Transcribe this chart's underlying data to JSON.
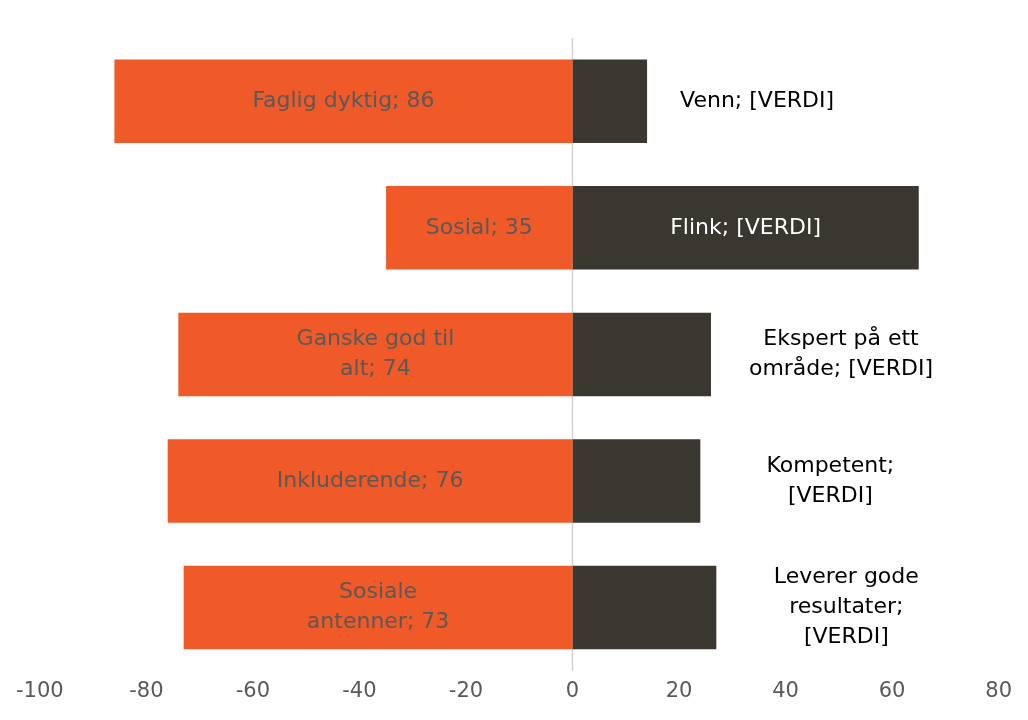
{
  "chart_data": {
    "type": "bar",
    "orientation": "horizontal",
    "categories": [
      null,
      null,
      null,
      null,
      null
    ],
    "series": [
      {
        "color": "#f05a28",
        "base": [
          -86,
          -35,
          -74,
          -76,
          -73
        ],
        "values": [
          86,
          35,
          74,
          76,
          73
        ],
        "value_labels": [
          "Faglig dyktig; 86",
          "Sosial; 35",
          "Ganske god til alt; 74",
          "Inkluderende; 76",
          "Sosiale antenner; 73"
        ]
      },
      {
        "color": "#3a3630",
        "values": [
          14,
          65,
          26,
          24,
          27
        ],
        "value_labels": [
          "Venn; [VERDI]",
          "Flink; [VERDI]",
          "Ekspert på ett område; [VERDI]",
          "Kompetent; [VERDI]",
          "Leverer gode resultater; [VERDI]"
        ]
      }
    ],
    "xlim": [
      -100,
      80
    ],
    "xticks": [
      -100,
      -80,
      -60,
      -40,
      -20,
      0,
      20,
      40,
      60,
      80
    ],
    "ref_lines": [
      {
        "axis": "x",
        "value": 0,
        "color": "#d0d0d0"
      }
    ],
    "grid": false,
    "legend": false
  }
}
